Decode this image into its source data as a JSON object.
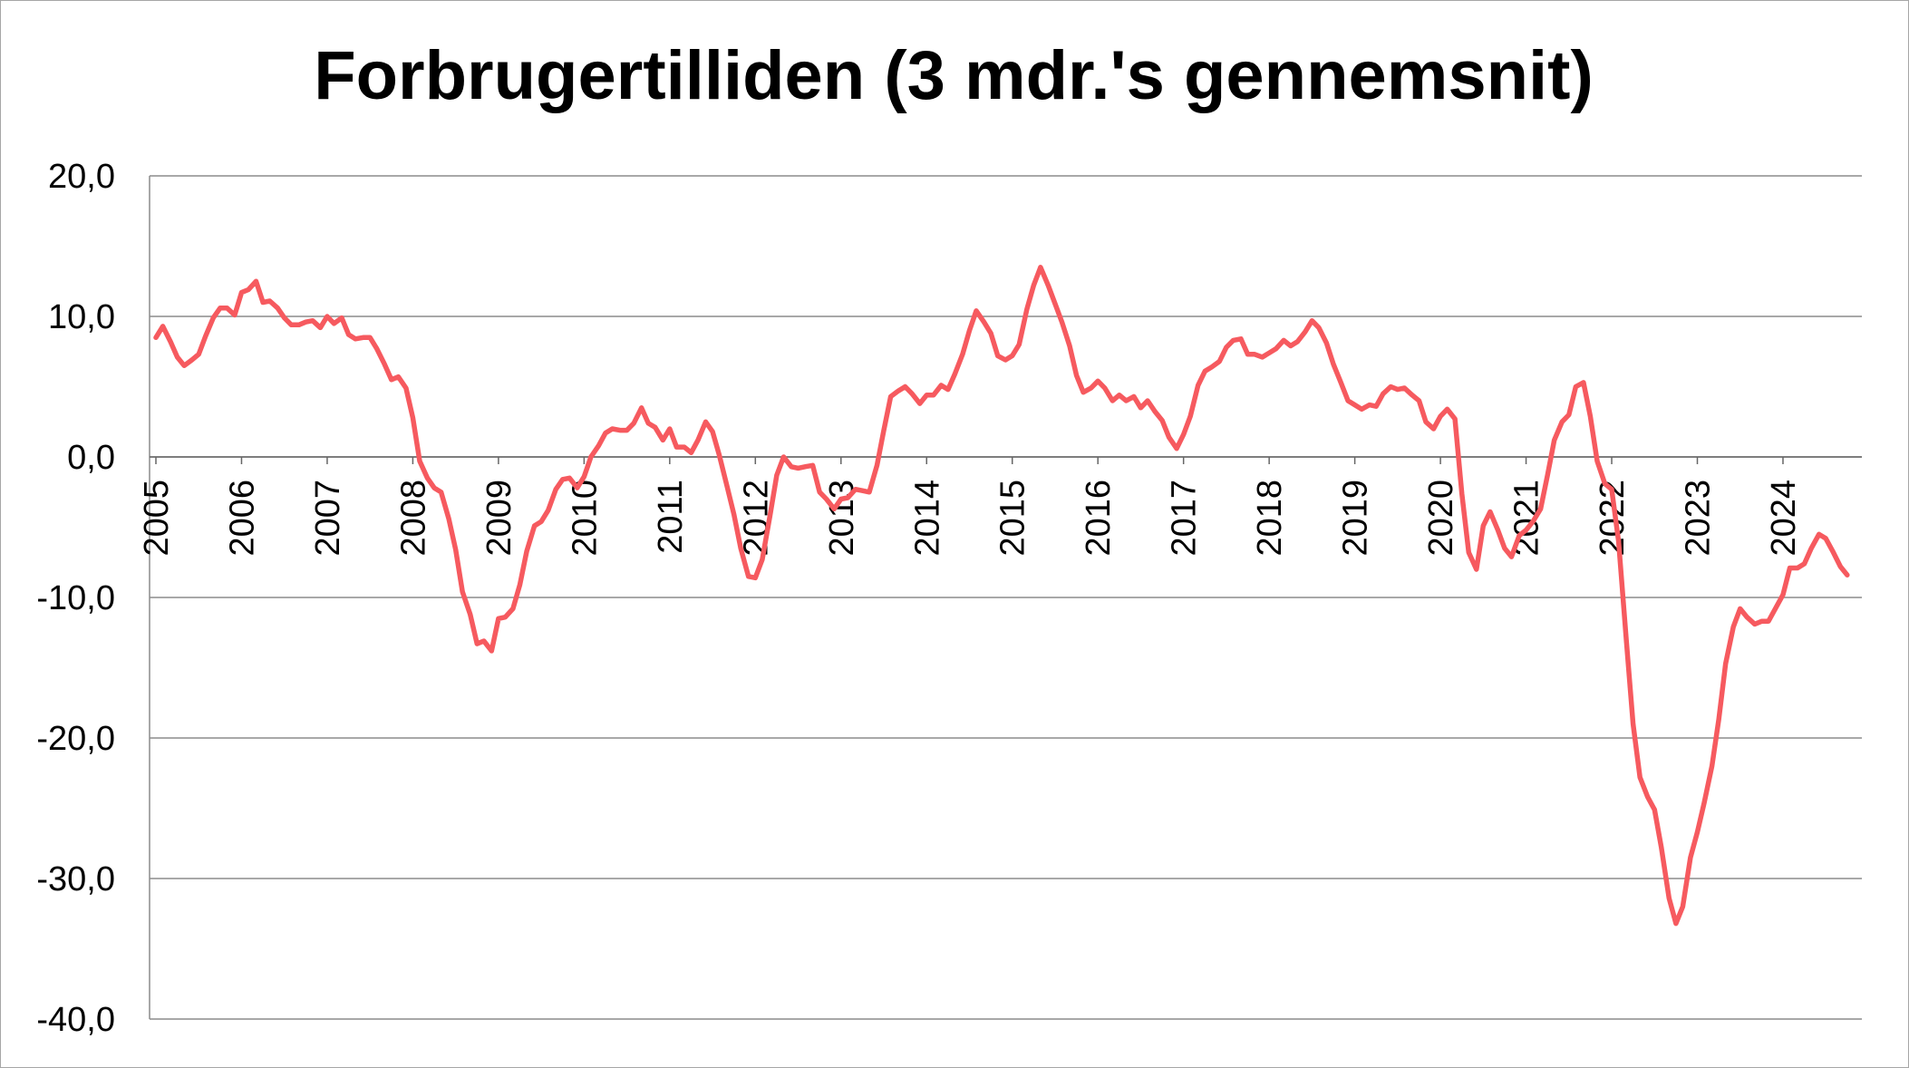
{
  "chart_data": {
    "type": "line",
    "title": "Forbrugertilliden (3 mdr.'s gennemsnit)",
    "xlabel": "",
    "ylabel": "",
    "ylim": [
      -40,
      20
    ],
    "yticks": [
      "20,0",
      "10,0",
      "0,0",
      "-10,0",
      "-20,0",
      "-30,0",
      "-40,0"
    ],
    "ytick_values": [
      20,
      10,
      0,
      -10,
      -20,
      -30,
      -40
    ],
    "xticks": [
      "2005",
      "2006",
      "2007",
      "2008",
      "2009",
      "2010",
      "2011",
      "2012",
      "2013",
      "2014",
      "2015",
      "2016",
      "2017",
      "2018",
      "2019",
      "2020",
      "2021",
      "2022",
      "2023",
      "2024"
    ],
    "xlim": [
      2005,
      2024.9
    ],
    "grid": true,
    "legend": "none",
    "colors": {
      "line": "#f65a5f",
      "grid": "#8c8c8c"
    },
    "series": [
      {
        "points": [
          [
            2005.0,
            8.5
          ],
          [
            2005.08,
            9.3
          ],
          [
            2005.17,
            8.2
          ],
          [
            2005.25,
            7.1
          ],
          [
            2005.33,
            6.5
          ],
          [
            2005.42,
            6.9
          ],
          [
            2005.5,
            7.3
          ],
          [
            2005.58,
            8.6
          ],
          [
            2005.67,
            9.9
          ],
          [
            2005.75,
            10.6
          ],
          [
            2005.83,
            10.6
          ],
          [
            2005.92,
            10.1
          ],
          [
            2006.0,
            11.7
          ],
          [
            2006.08,
            11.9
          ],
          [
            2006.17,
            12.5
          ],
          [
            2006.25,
            11.0
          ],
          [
            2006.33,
            11.1
          ],
          [
            2006.42,
            10.6
          ],
          [
            2006.5,
            9.9
          ],
          [
            2006.58,
            9.4
          ],
          [
            2006.67,
            9.4
          ],
          [
            2006.75,
            9.6
          ],
          [
            2006.83,
            9.7
          ],
          [
            2006.92,
            9.2
          ],
          [
            2007.0,
            10.0
          ],
          [
            2007.08,
            9.5
          ],
          [
            2007.17,
            9.9
          ],
          [
            2007.25,
            8.7
          ],
          [
            2007.33,
            8.4
          ],
          [
            2007.42,
            8.5
          ],
          [
            2007.5,
            8.5
          ],
          [
            2007.58,
            7.7
          ],
          [
            2007.67,
            6.6
          ],
          [
            2007.75,
            5.5
          ],
          [
            2007.83,
            5.7
          ],
          [
            2007.92,
            4.9
          ],
          [
            2008.0,
            2.8
          ],
          [
            2008.08,
            -0.3
          ],
          [
            2008.17,
            -1.5
          ],
          [
            2008.25,
            -2.2
          ],
          [
            2008.33,
            -2.5
          ],
          [
            2008.42,
            -4.4
          ],
          [
            2008.5,
            -6.6
          ],
          [
            2008.58,
            -9.6
          ],
          [
            2008.67,
            -11.2
          ],
          [
            2008.75,
            -13.3
          ],
          [
            2008.83,
            -13.1
          ],
          [
            2008.92,
            -13.8
          ],
          [
            2009.0,
            -11.5
          ],
          [
            2009.08,
            -11.4
          ],
          [
            2009.17,
            -10.8
          ],
          [
            2009.25,
            -9.1
          ],
          [
            2009.33,
            -6.7
          ],
          [
            2009.42,
            -4.9
          ],
          [
            2009.5,
            -4.6
          ],
          [
            2009.58,
            -3.8
          ],
          [
            2009.67,
            -2.3
          ],
          [
            2009.75,
            -1.6
          ],
          [
            2009.83,
            -1.5
          ],
          [
            2009.92,
            -2.2
          ],
          [
            2010.0,
            -1.4
          ],
          [
            2010.08,
            0.0
          ],
          [
            2010.17,
            0.8
          ],
          [
            2010.25,
            1.7
          ],
          [
            2010.33,
            2.0
          ],
          [
            2010.42,
            1.9
          ],
          [
            2010.5,
            1.9
          ],
          [
            2010.58,
            2.4
          ],
          [
            2010.67,
            3.5
          ],
          [
            2010.75,
            2.4
          ],
          [
            2010.83,
            2.1
          ],
          [
            2010.92,
            1.2
          ],
          [
            2011.0,
            2.0
          ],
          [
            2011.08,
            0.7
          ],
          [
            2011.17,
            0.7
          ],
          [
            2011.25,
            0.3
          ],
          [
            2011.33,
            1.2
          ],
          [
            2011.42,
            2.5
          ],
          [
            2011.5,
            1.8
          ],
          [
            2011.58,
            0.1
          ],
          [
            2011.67,
            -2.1
          ],
          [
            2011.75,
            -4.1
          ],
          [
            2011.83,
            -6.5
          ],
          [
            2011.92,
            -8.5
          ],
          [
            2012.0,
            -8.6
          ],
          [
            2012.08,
            -7.3
          ],
          [
            2012.17,
            -4.2
          ],
          [
            2012.25,
            -1.3
          ],
          [
            2012.33,
            0.0
          ],
          [
            2012.42,
            -0.7
          ],
          [
            2012.5,
            -0.8
          ],
          [
            2012.58,
            -0.7
          ],
          [
            2012.67,
            -0.6
          ],
          [
            2012.75,
            -2.5
          ],
          [
            2012.83,
            -3.0
          ],
          [
            2012.92,
            -3.7
          ],
          [
            2013.0,
            -3.0
          ],
          [
            2013.08,
            -2.9
          ],
          [
            2013.17,
            -2.3
          ],
          [
            2013.25,
            -2.4
          ],
          [
            2013.33,
            -2.5
          ],
          [
            2013.42,
            -0.6
          ],
          [
            2013.5,
            1.9
          ],
          [
            2013.58,
            4.3
          ],
          [
            2013.67,
            4.7
          ],
          [
            2013.75,
            5.0
          ],
          [
            2013.83,
            4.5
          ],
          [
            2013.92,
            3.8
          ],
          [
            2014.0,
            4.4
          ],
          [
            2014.08,
            4.4
          ],
          [
            2014.17,
            5.1
          ],
          [
            2014.25,
            4.8
          ],
          [
            2014.33,
            5.9
          ],
          [
            2014.42,
            7.3
          ],
          [
            2014.5,
            9.0
          ],
          [
            2014.58,
            10.4
          ],
          [
            2014.67,
            9.6
          ],
          [
            2014.75,
            8.8
          ],
          [
            2014.83,
            7.2
          ],
          [
            2014.92,
            6.9
          ],
          [
            2015.0,
            7.2
          ],
          [
            2015.08,
            8.0
          ],
          [
            2015.17,
            10.5
          ],
          [
            2015.25,
            12.2
          ],
          [
            2015.33,
            13.5
          ],
          [
            2015.42,
            12.2
          ],
          [
            2015.5,
            10.9
          ],
          [
            2015.58,
            9.6
          ],
          [
            2015.67,
            7.9
          ],
          [
            2015.75,
            5.8
          ],
          [
            2015.83,
            4.6
          ],
          [
            2015.92,
            4.9
          ],
          [
            2016.0,
            5.4
          ],
          [
            2016.08,
            4.9
          ],
          [
            2016.17,
            4.0
          ],
          [
            2016.25,
            4.4
          ],
          [
            2016.33,
            4.0
          ],
          [
            2016.42,
            4.3
          ],
          [
            2016.5,
            3.5
          ],
          [
            2016.58,
            4.0
          ],
          [
            2016.67,
            3.2
          ],
          [
            2016.75,
            2.6
          ],
          [
            2016.83,
            1.4
          ],
          [
            2016.92,
            0.6
          ],
          [
            2017.0,
            1.6
          ],
          [
            2017.08,
            2.9
          ],
          [
            2017.17,
            5.1
          ],
          [
            2017.25,
            6.1
          ],
          [
            2017.33,
            6.4
          ],
          [
            2017.42,
            6.8
          ],
          [
            2017.5,
            7.8
          ],
          [
            2017.58,
            8.3
          ],
          [
            2017.67,
            8.4
          ],
          [
            2017.75,
            7.3
          ],
          [
            2017.83,
            7.3
          ],
          [
            2017.92,
            7.1
          ],
          [
            2018.0,
            7.4
          ],
          [
            2018.08,
            7.7
          ],
          [
            2018.17,
            8.3
          ],
          [
            2018.25,
            7.9
          ],
          [
            2018.33,
            8.2
          ],
          [
            2018.42,
            8.9
          ],
          [
            2018.5,
            9.7
          ],
          [
            2018.58,
            9.2
          ],
          [
            2018.67,
            8.1
          ],
          [
            2018.75,
            6.6
          ],
          [
            2018.83,
            5.4
          ],
          [
            2018.92,
            4.0
          ],
          [
            2019.0,
            3.7
          ],
          [
            2019.08,
            3.4
          ],
          [
            2019.17,
            3.7
          ],
          [
            2019.25,
            3.6
          ],
          [
            2019.33,
            4.5
          ],
          [
            2019.42,
            5.0
          ],
          [
            2019.5,
            4.8
          ],
          [
            2019.58,
            4.9
          ],
          [
            2019.67,
            4.4
          ],
          [
            2019.75,
            4.0
          ],
          [
            2019.83,
            2.5
          ],
          [
            2019.92,
            2.0
          ],
          [
            2020.0,
            2.9
          ],
          [
            2020.08,
            3.4
          ],
          [
            2020.17,
            2.7
          ],
          [
            2020.25,
            -2.6
          ],
          [
            2020.33,
            -6.8
          ],
          [
            2020.42,
            -8.0
          ],
          [
            2020.5,
            -4.9
          ],
          [
            2020.58,
            -3.9
          ],
          [
            2020.67,
            -5.2
          ],
          [
            2020.75,
            -6.5
          ],
          [
            2020.83,
            -7.1
          ],
          [
            2020.92,
            -5.6
          ],
          [
            2021.0,
            -5.2
          ],
          [
            2021.08,
            -4.6
          ],
          [
            2021.17,
            -3.7
          ],
          [
            2021.25,
            -1.3
          ],
          [
            2021.33,
            1.2
          ],
          [
            2021.42,
            2.5
          ],
          [
            2021.5,
            3.0
          ],
          [
            2021.58,
            5.0
          ],
          [
            2021.67,
            5.3
          ],
          [
            2021.75,
            2.9
          ],
          [
            2021.83,
            -0.3
          ],
          [
            2021.92,
            -1.9
          ],
          [
            2022.0,
            -2.3
          ],
          [
            2022.08,
            -6.0
          ],
          [
            2022.17,
            -13.0
          ],
          [
            2022.25,
            -19.0
          ],
          [
            2022.33,
            -22.8
          ],
          [
            2022.42,
            -24.2
          ],
          [
            2022.5,
            -25.1
          ],
          [
            2022.58,
            -27.8
          ],
          [
            2022.67,
            -31.4
          ],
          [
            2022.75,
            -33.2
          ],
          [
            2022.83,
            -32.0
          ],
          [
            2022.92,
            -28.5
          ],
          [
            2023.0,
            -26.7
          ],
          [
            2023.08,
            -24.6
          ],
          [
            2023.17,
            -22.0
          ],
          [
            2023.25,
            -18.7
          ],
          [
            2023.33,
            -14.7
          ],
          [
            2023.42,
            -12.1
          ],
          [
            2023.5,
            -10.8
          ],
          [
            2023.58,
            -11.4
          ],
          [
            2023.67,
            -11.9
          ],
          [
            2023.75,
            -11.7
          ],
          [
            2023.83,
            -11.7
          ],
          [
            2023.92,
            -10.7
          ],
          [
            2024.0,
            -9.8
          ],
          [
            2024.08,
            -7.9
          ],
          [
            2024.17,
            -7.9
          ],
          [
            2024.25,
            -7.6
          ],
          [
            2024.33,
            -6.5
          ],
          [
            2024.42,
            -5.5
          ],
          [
            2024.5,
            -5.8
          ],
          [
            2024.58,
            -6.7
          ],
          [
            2024.67,
            -7.8
          ],
          [
            2024.75,
            -8.4
          ]
        ]
      }
    ]
  }
}
